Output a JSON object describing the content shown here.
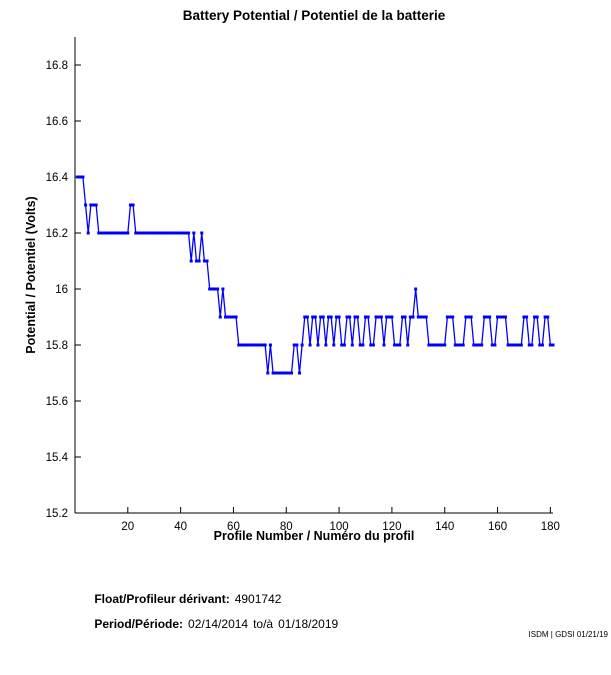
{
  "chart_data": {
    "type": "line",
    "title": "Battery Potential / Potentiel de la batterie",
    "xlabel": "Profile Number / Numéro du profil",
    "ylabel": "Potential / Potentiel (Volts)",
    "line_color": "#0000FF",
    "marker": "square",
    "grid": false,
    "legend": false,
    "xlim": [
      0,
      181
    ],
    "ylim": [
      15.2,
      16.9
    ],
    "xticks": [
      20,
      40,
      60,
      80,
      100,
      120,
      140,
      160,
      180
    ],
    "yticks": [
      "15.2",
      "15.4",
      "15.6",
      "15.8",
      "16",
      "16.2",
      "16.4",
      "16.6",
      "16.8"
    ],
    "x_start": 1,
    "n_points": 181,
    "values": [
      16.4,
      16.4,
      16.4,
      16.3,
      16.2,
      16.3,
      16.3,
      16.3,
      16.2,
      16.2,
      16.2,
      16.2,
      16.2,
      16.2,
      16.2,
      16.2,
      16.2,
      16.2,
      16.2,
      16.2,
      16.3,
      16.3,
      16.2,
      16.2,
      16.2,
      16.2,
      16.2,
      16.2,
      16.2,
      16.2,
      16.2,
      16.2,
      16.2,
      16.2,
      16.2,
      16.2,
      16.2,
      16.2,
      16.2,
      16.2,
      16.2,
      16.2,
      16.2,
      16.1,
      16.2,
      16.1,
      16.1,
      16.2,
      16.1,
      16.1,
      16.0,
      16.0,
      16.0,
      16.0,
      15.9,
      16.0,
      15.9,
      15.9,
      15.9,
      15.9,
      15.9,
      15.8,
      15.8,
      15.8,
      15.8,
      15.8,
      15.8,
      15.8,
      15.8,
      15.8,
      15.8,
      15.8,
      15.7,
      15.8,
      15.7,
      15.7,
      15.7,
      15.7,
      15.7,
      15.7,
      15.7,
      15.7,
      15.8,
      15.8,
      15.7,
      15.8,
      15.9,
      15.9,
      15.8,
      15.9,
      15.9,
      15.8,
      15.9,
      15.9,
      15.8,
      15.9,
      15.9,
      15.8,
      15.9,
      15.9,
      15.8,
      15.8,
      15.9,
      15.9,
      15.8,
      15.9,
      15.9,
      15.8,
      15.8,
      15.9,
      15.9,
      15.8,
      15.8,
      15.9,
      15.9,
      15.9,
      15.8,
      15.9,
      15.9,
      15.9,
      15.8,
      15.8,
      15.8,
      15.9,
      15.9,
      15.8,
      15.9,
      15.9,
      16.0,
      15.9,
      15.9,
      15.9,
      15.9,
      15.8,
      15.8,
      15.8,
      15.8,
      15.8,
      15.8,
      15.8,
      15.9,
      15.9,
      15.9,
      15.8,
      15.8,
      15.8,
      15.8,
      15.9,
      15.9,
      15.9,
      15.8,
      15.8,
      15.8,
      15.8,
      15.9,
      15.9,
      15.9,
      15.8,
      15.8,
      15.9,
      15.9,
      15.9,
      15.9,
      15.8,
      15.8,
      15.8,
      15.8,
      15.8,
      15.8,
      15.9,
      15.9,
      15.8,
      15.8,
      15.9,
      15.9,
      15.8,
      15.8,
      15.9,
      15.9,
      15.8,
      15.8
    ]
  },
  "footer": {
    "float_label": "Float/Profileur dérivant:",
    "float_value": "4901742",
    "period_label": "Period/Période:",
    "period_from": "02/14/2014",
    "period_sep": "to/à",
    "period_to": "01/18/2019"
  },
  "watermark": "ISDM | GDSI 01/21/19"
}
